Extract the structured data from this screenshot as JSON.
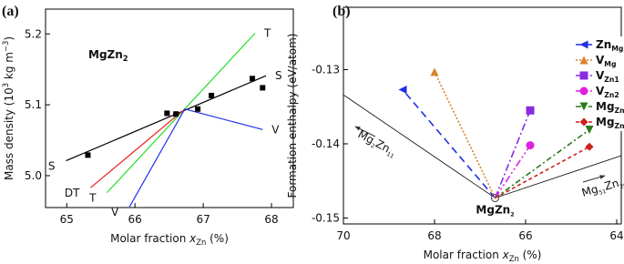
{
  "chart_data": [
    {
      "type": "line",
      "panel_label": "(a)",
      "title": [
        {
          "text": "MgZn"
        },
        {
          "text": "2",
          "style": "sub"
        }
      ],
      "xlabel": [
        {
          "text": "Molar fraction "
        },
        {
          "text": "x",
          "style": "italic"
        },
        {
          "text": "Zn",
          "style": "sub"
        },
        {
          "text": " (%)"
        }
      ],
      "ylabel": [
        {
          "text": "Mass density (10"
        },
        {
          "text": "3",
          "style": "sup"
        },
        {
          "text": " kg m"
        },
        {
          "text": "−3",
          "style": "sup"
        },
        {
          "text": ")"
        }
      ],
      "xlim": [
        64.69,
        68.32
      ],
      "xticks": [
        65,
        66,
        67,
        68
      ],
      "ylim": [
        4.955,
        5.235
      ],
      "yticks": [
        {
          "value": 5.0,
          "label": "5.0"
        },
        5.1,
        5.2
      ],
      "points": {
        "color": "#000000",
        "x": [
          65.31,
          66.47,
          66.6,
          66.92,
          67.12,
          67.72,
          67.87
        ],
        "values": [
          5.029,
          5.088,
          5.087,
          5.094,
          5.113,
          5.137,
          5.124
        ]
      },
      "series": [
        {
          "name": "S",
          "color": "#000000",
          "x": [
            64.99,
            67.92
          ],
          "values": [
            5.021,
            5.141
          ]
        },
        {
          "name": "T",
          "color": "#22dd22",
          "x": [
            65.59,
            67.76
          ],
          "values": [
            4.976,
            5.201
          ]
        },
        {
          "name": "DT",
          "color": "#ee2222",
          "x": [
            65.35,
            66.73
          ],
          "values": [
            4.983,
            5.094
          ]
        },
        {
          "name": "V",
          "color": "#2233ee",
          "x": [
            65.92,
            66.73,
            67.87
          ],
          "values": [
            4.956,
            5.094,
            5.065
          ]
        }
      ]
    },
    {
      "type": "line",
      "panel_label": "(b)",
      "xlabel": [
        {
          "text": "Molar fraction "
        },
        {
          "text": "x",
          "style": "italic"
        },
        {
          "text": "Zn",
          "style": "sub"
        },
        {
          "text": " (%)"
        }
      ],
      "ylabel": [
        {
          "text": "Formation enthalpy (eV/atom)"
        }
      ],
      "xlim": [
        70,
        63.9
      ],
      "xticks": [
        70,
        68,
        66,
        64
      ],
      "ylim": [
        -0.1508,
        -0.1216
      ],
      "yticks": [
        -0.13,
        -0.14,
        -0.15
      ],
      "hull": {
        "color": "#000000",
        "x": [
          70,
          66.67,
          63.9
        ],
        "values": [
          -0.1334,
          -0.1473,
          -0.1416
        ]
      },
      "annotations": [
        [
          {
            "text": "Mg"
          },
          {
            "text": "2",
            "style": "sub"
          },
          {
            "text": "Zn"
          },
          {
            "text": "11",
            "style": "sub"
          }
        ],
        [
          {
            "text": "MgZn"
          },
          {
            "text": "2",
            "style": "sub"
          }
        ],
        [
          {
            "text": "Mg"
          },
          {
            "text": "51",
            "style": "sub"
          },
          {
            "text": "Zn"
          },
          {
            "text": "20",
            "style": "sub"
          }
        ]
      ],
      "series": [
        {
          "name": [
            {
              "text": "Zn"
            },
            {
              "text": "Mg",
              "style": "sub"
            }
          ],
          "color": "#1f2ee6",
          "marker": "triangle-left",
          "dash": "8,5",
          "x": [
            66.67,
            68.7
          ],
          "values": [
            -0.1473,
            -0.1327
          ]
        },
        {
          "name": [
            {
              "text": "V"
            },
            {
              "text": "Mg",
              "style": "sub"
            }
          ],
          "color": "#d9822b",
          "marker": "triangle-up",
          "dash": "2,2",
          "x": [
            66.67,
            68.0
          ],
          "values": [
            -0.1473,
            -0.1303
          ]
        },
        {
          "name": [
            {
              "text": "V"
            },
            {
              "text": "Zn1",
              "style": "sub"
            }
          ],
          "color": "#8a2be2",
          "marker": "square",
          "dash": "8,3,2,3",
          "x": [
            66.67,
            65.9
          ],
          "values": [
            -0.1473,
            -0.1355
          ]
        },
        {
          "name": [
            {
              "text": "V"
            },
            {
              "text": "Zn2",
              "style": "sub"
            }
          ],
          "color": "#e020e0",
          "marker": "circle",
          "dash": "8,3,2,3,2,3",
          "x": [
            66.67,
            65.9
          ],
          "values": [
            -0.1473,
            -0.1402
          ]
        },
        {
          "name": [
            {
              "text": "Mg"
            },
            {
              "text": "Zn1",
              "style": "sub"
            }
          ],
          "color": "#2a7a1a",
          "marker": "triangle-down",
          "dash": "6,3,2,3",
          "x": [
            66.67,
            64.6
          ],
          "values": [
            -0.1473,
            -0.1381
          ]
        },
        {
          "name": [
            {
              "text": "Mg"
            },
            {
              "text": "Zn2",
              "style": "sub"
            }
          ],
          "color": "#cc1f1f",
          "marker": "diamond",
          "dash": "4,3",
          "x": [
            66.67,
            64.6
          ],
          "values": [
            -0.1473,
            -0.1404
          ]
        }
      ]
    }
  ]
}
